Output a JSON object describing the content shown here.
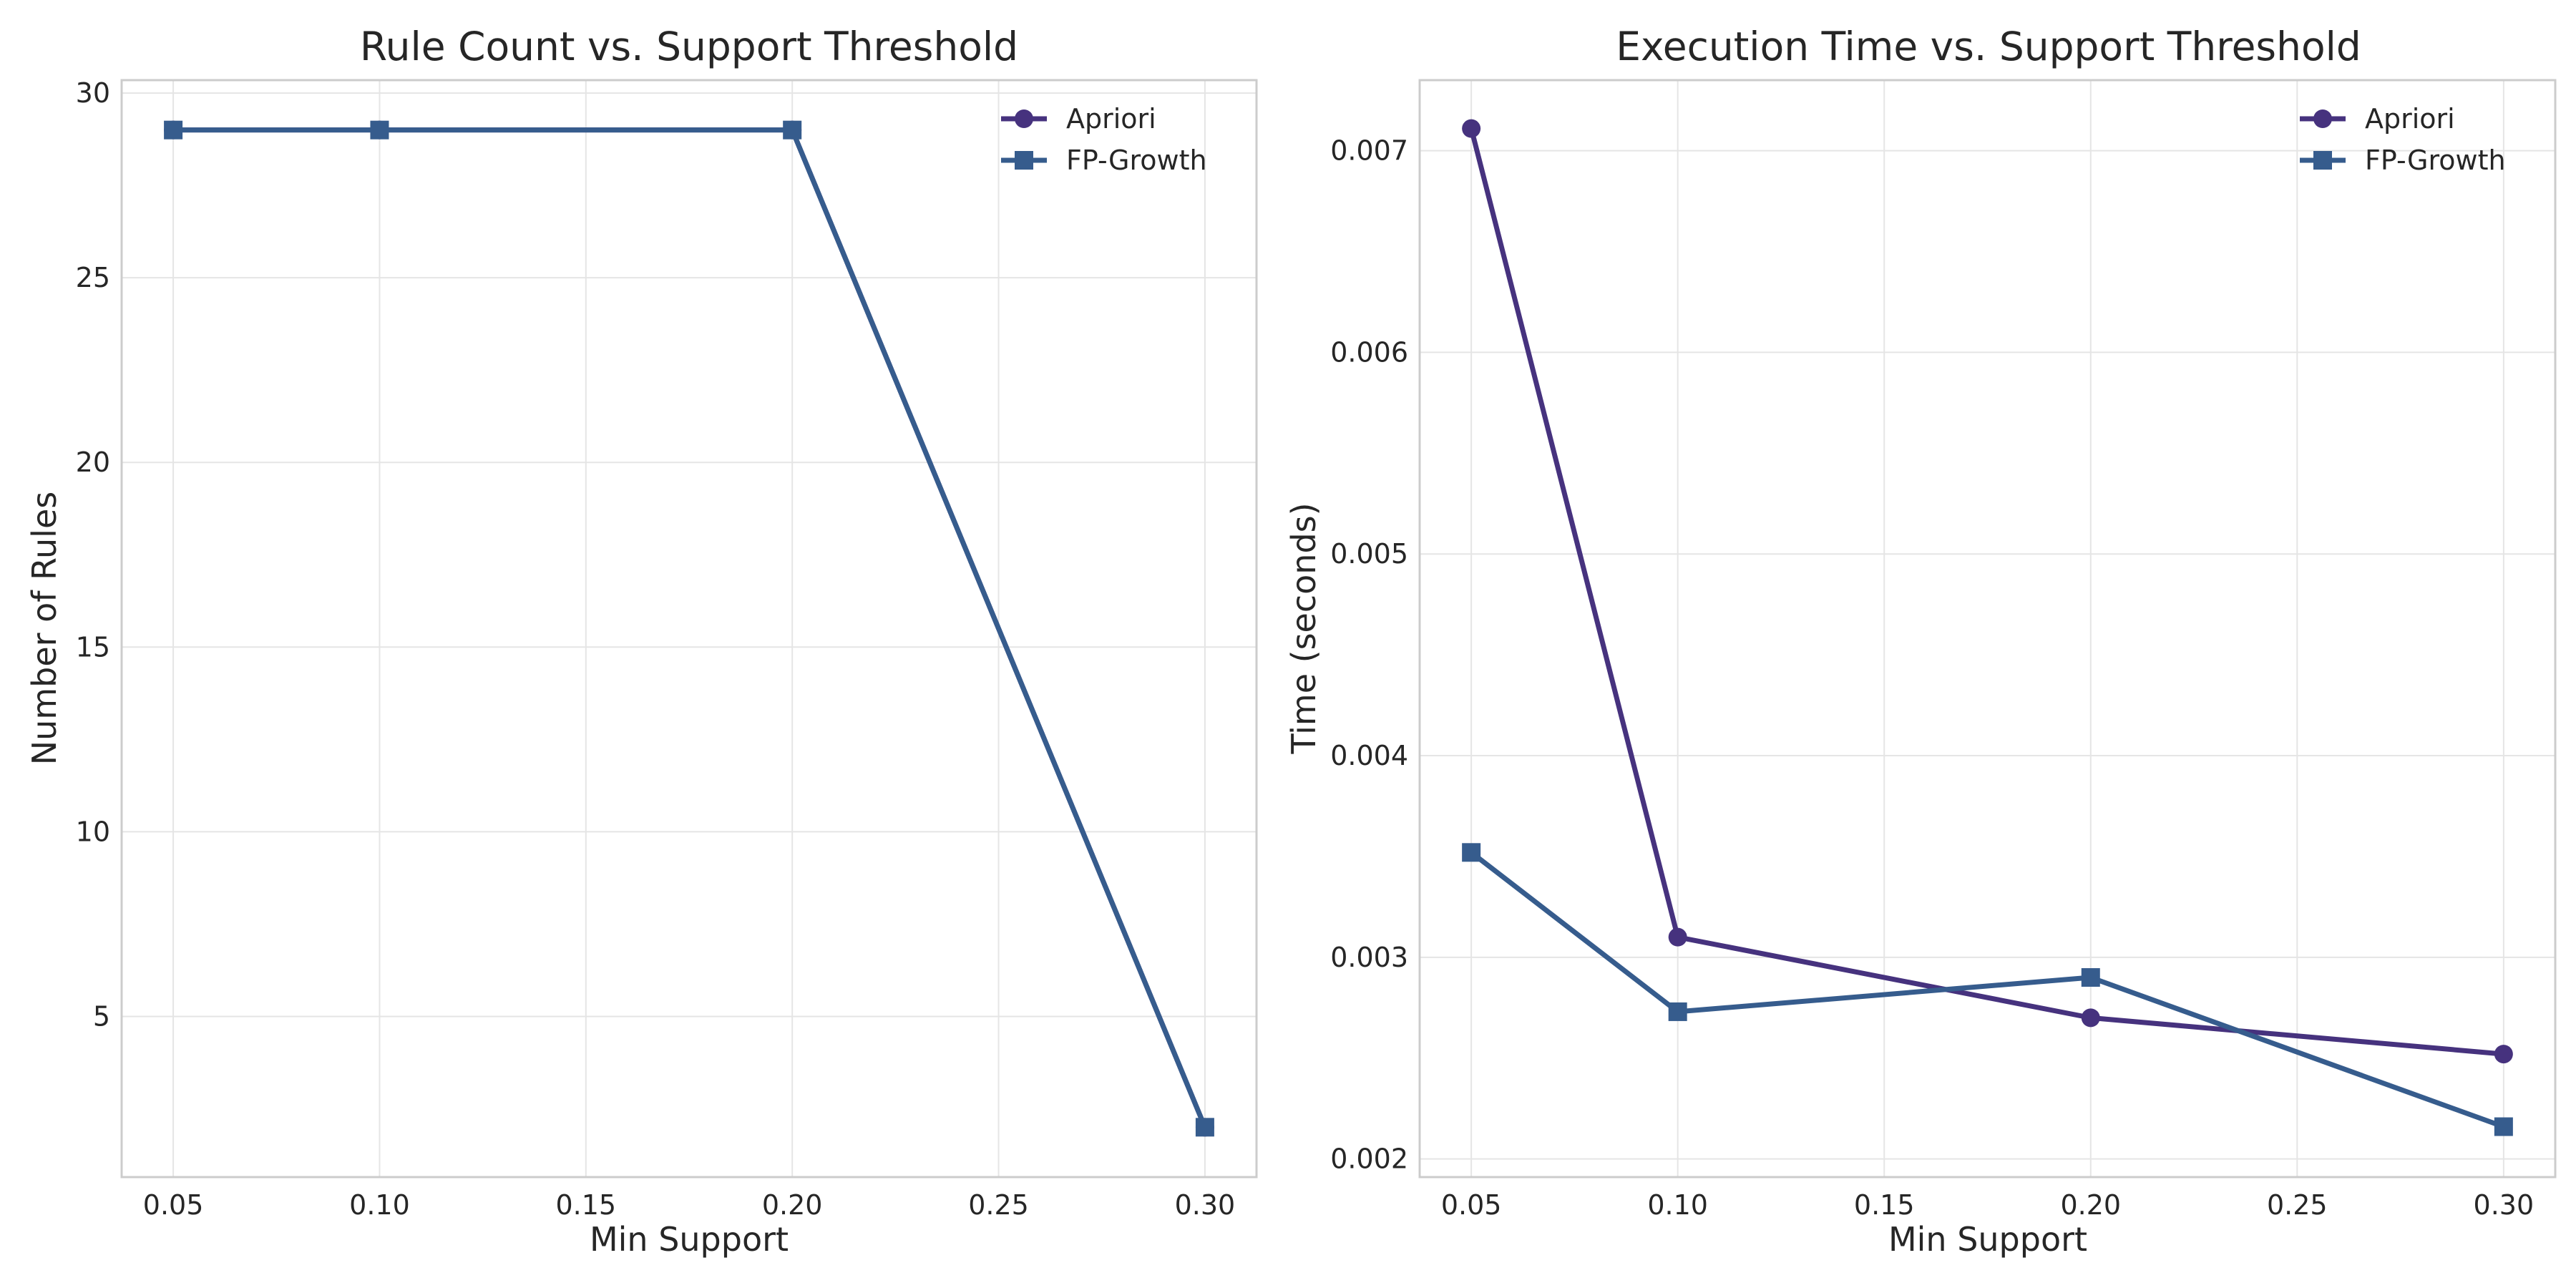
{
  "chart_data": [
    {
      "type": "line",
      "title": "Rule Count vs. Support Threshold",
      "xlabel": "Min Support",
      "ylabel": "Number of Rules",
      "xlim": [
        0.0375,
        0.3125
      ],
      "ylim": [
        0.65,
        30.35
      ],
      "xticks": [
        0.05,
        0.1,
        0.15,
        0.2,
        0.25,
        0.3
      ],
      "xtick_labels": [
        "0.05",
        "0.10",
        "0.15",
        "0.20",
        "0.25",
        "0.30"
      ],
      "yticks": [
        5,
        10,
        15,
        20,
        25,
        30
      ],
      "ytick_labels": [
        "5",
        "10",
        "15",
        "20",
        "25",
        "30"
      ],
      "grid": true,
      "legend": "top-right",
      "series": [
        {
          "name": "Apriori",
          "marker": "circle",
          "color": "#46327e",
          "x": [
            0.05,
            0.1,
            0.2,
            0.3
          ],
          "y": [
            29,
            29,
            29,
            2
          ]
        },
        {
          "name": "FP-Growth",
          "marker": "square",
          "color": "#365c8d",
          "x": [
            0.05,
            0.1,
            0.2,
            0.3
          ],
          "y": [
            29,
            29,
            29,
            2
          ]
        }
      ]
    },
    {
      "type": "line",
      "title": "Execution Time vs. Support Threshold",
      "xlabel": "Min Support",
      "ylabel": "Time (seconds)",
      "xlim": [
        0.0375,
        0.3125
      ],
      "ylim": [
        0.00191,
        0.00735
      ],
      "xticks": [
        0.05,
        0.1,
        0.15,
        0.2,
        0.25,
        0.3
      ],
      "xtick_labels": [
        "0.05",
        "0.10",
        "0.15",
        "0.20",
        "0.25",
        "0.30"
      ],
      "yticks": [
        0.002,
        0.003,
        0.004,
        0.005,
        0.006,
        0.007
      ],
      "ytick_labels": [
        "0.002",
        "0.003",
        "0.004",
        "0.005",
        "0.006",
        "0.007"
      ],
      "grid": true,
      "legend": "top-right",
      "series": [
        {
          "name": "Apriori",
          "marker": "circle",
          "color": "#46327e",
          "x": [
            0.05,
            0.1,
            0.2,
            0.3
          ],
          "y": [
            0.00711,
            0.0031,
            0.0027,
            0.00252
          ]
        },
        {
          "name": "FP-Growth",
          "marker": "square",
          "color": "#365c8d",
          "x": [
            0.05,
            0.1,
            0.2,
            0.3
          ],
          "y": [
            0.00352,
            0.00273,
            0.0029,
            0.00216
          ]
        }
      ]
    }
  ]
}
